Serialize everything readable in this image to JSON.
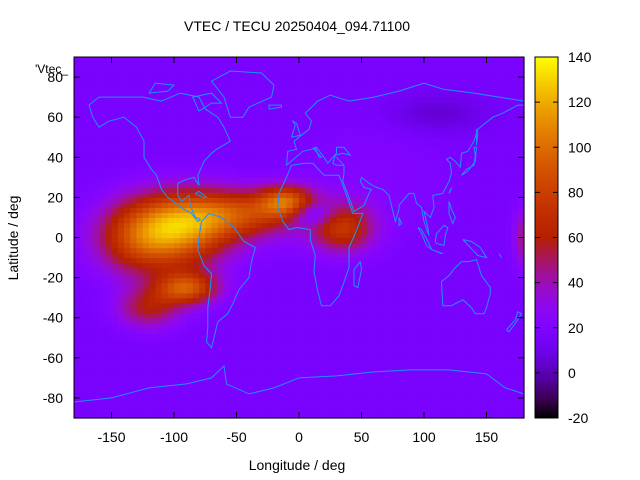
{
  "chart_data": {
    "type": "heatmap",
    "title": "VTEC / TECU 20250404_094.71100",
    "xlabel": "Longitude / deg",
    "ylabel": "Latitude / deg",
    "legend_label": "'Vtec_",
    "xlim": [
      -180,
      180
    ],
    "ylim": [
      -90,
      90
    ],
    "x_ticks": [
      -150,
      -100,
      -50,
      0,
      50,
      100,
      150
    ],
    "y_ticks": [
      -80,
      -60,
      -40,
      -20,
      0,
      20,
      40,
      60,
      80
    ],
    "colorbar": {
      "range": [
        -20,
        140
      ],
      "ticks": [
        -20,
        0,
        20,
        40,
        60,
        80,
        100,
        120,
        140
      ],
      "palette": "black-blue-purple-red-orange-yellow"
    },
    "grid": false,
    "z_model": {
      "background_tecu": 16,
      "features": [
        {
          "lon": -95,
          "lat": 4,
          "lon_width": 40,
          "lat_width": 18,
          "amp": 80
        },
        {
          "lon": -90,
          "lat": -25,
          "lon_width": 25,
          "lat_width": 8,
          "amp": 70
        },
        {
          "lon": -50,
          "lat": 12,
          "lon_width": 50,
          "lat_width": 12,
          "amp": 60
        },
        {
          "lon": -10,
          "lat": 18,
          "lon_width": 22,
          "lat_width": 8,
          "amp": 65
        },
        {
          "lon": 35,
          "lat": 5,
          "lon_width": 25,
          "lat_width": 12,
          "amp": 55
        },
        {
          "lon": -130,
          "lat": 0,
          "lon_width": 35,
          "lat_width": 18,
          "amp": 50
        },
        {
          "lon": -120,
          "lat": -35,
          "lon_width": 25,
          "lat_width": 10,
          "amp": 40
        },
        {
          "lon": 10,
          "lat": 12,
          "lon_width": 18,
          "lat_width": 6,
          "amp": -35
        },
        {
          "lon": 180,
          "lat": 0,
          "lon_width": 8,
          "lat_width": 15,
          "amp": 30
        },
        {
          "lon": 60,
          "lat": 30,
          "lon_width": 60,
          "lat_width": 30,
          "amp": 6
        },
        {
          "lon": 110,
          "lat": 62,
          "lon_width": 40,
          "lat_width": 10,
          "amp": -12
        }
      ]
    },
    "coastline_color": "#1e90ff"
  }
}
